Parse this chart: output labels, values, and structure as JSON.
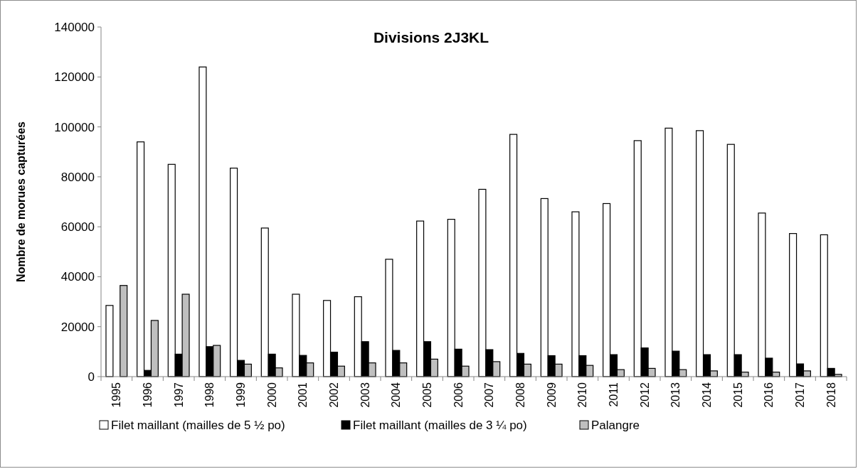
{
  "chart_data": {
    "type": "bar",
    "title": "Divisions 2J3KL",
    "ylabel": "Nombre de morues capturées",
    "categories": [
      "1995",
      "1996",
      "1997",
      "1998",
      "1999",
      "2000",
      "2001",
      "2002",
      "2003",
      "2004",
      "2005",
      "2006",
      "2007",
      "2008",
      "2009",
      "2010",
      "2011",
      "2012",
      "2013",
      "2014",
      "2015",
      "2016",
      "2017",
      "2018"
    ],
    "series": [
      {
        "name": "Filet maillant (mailles de 5 ½ po)",
        "color": "#ffffff",
        "values": [
          28500,
          94000,
          85000,
          124000,
          83500,
          59500,
          33000,
          30500,
          32000,
          47000,
          62300,
          63000,
          75000,
          97000,
          71300,
          66000,
          69300,
          94500,
          99500,
          98500,
          93000,
          65500,
          57300,
          56800
        ]
      },
      {
        "name": "Filet maillant (mailles de 3 ¼ po)",
        "color": "#000000",
        "values": [
          0,
          2500,
          9000,
          12000,
          6500,
          9000,
          8500,
          9800,
          14000,
          10500,
          14000,
          11000,
          10800,
          9300,
          8400,
          8400,
          8800,
          11500,
          10200,
          8800,
          8800,
          7400,
          5100,
          3300
        ]
      },
      {
        "name": "Palangre",
        "color": "#bfbfbf",
        "values": [
          36500,
          22500,
          33000,
          12500,
          5000,
          3500,
          5500,
          4200,
          5500,
          5500,
          7000,
          4200,
          6000,
          5000,
          5000,
          4500,
          2800,
          3300,
          2800,
          2300,
          1800,
          1800,
          2300,
          900
        ]
      }
    ],
    "ylim": [
      0,
      140000
    ],
    "yticks": [
      0,
      20000,
      40000,
      60000,
      80000,
      100000,
      120000,
      140000
    ],
    "grid": false,
    "legend": "bottom"
  }
}
